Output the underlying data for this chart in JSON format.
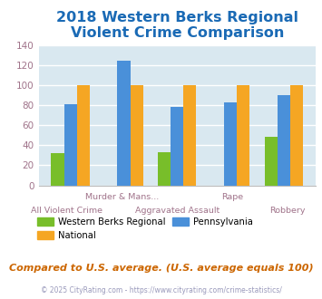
{
  "title": "2018 Western Berks Regional\nViolent Crime Comparison",
  "title_color": "#1a6ab5",
  "categories": [
    "All Violent Crime",
    "Murder & Mans...",
    "Aggravated Assault",
    "Rape",
    "Robbery"
  ],
  "western_berks": [
    32,
    0,
    33,
    0,
    48
  ],
  "pennsylvania": [
    81,
    124,
    78,
    83,
    90
  ],
  "national": [
    100,
    100,
    100,
    100,
    100
  ],
  "bar_color_green": "#78be2a",
  "bar_color_blue": "#4a90d9",
  "bar_color_orange": "#f5a623",
  "ylim": [
    0,
    140
  ],
  "yticks": [
    0,
    20,
    40,
    60,
    80,
    100,
    120,
    140
  ],
  "plot_bg": "#d9e8f0",
  "legend_labels": [
    "Western Berks Regional",
    "National",
    "Pennsylvania"
  ],
  "footnote": "Compared to U.S. average. (U.S. average equals 100)",
  "copyright": "© 2025 CityRating.com - https://www.cityrating.com/crime-statistics/",
  "footnote_color": "#cc6600",
  "copyright_color": "#9999bb",
  "title_fontsize": 11.5,
  "tick_label_color": "#a0738a",
  "grid_color": "#ffffff"
}
